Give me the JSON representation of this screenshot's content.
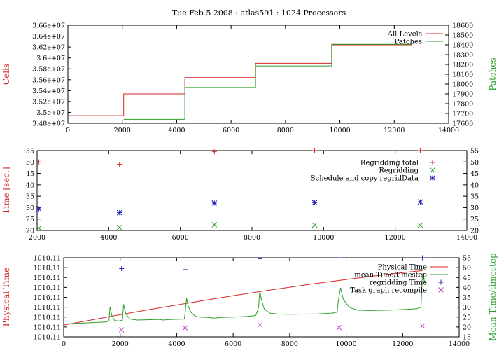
{
  "figure_title": "Tue Feb 5 2008 : atlas591 : 1024 Processors",
  "chart_data": [
    {
      "type": "line",
      "xlabel": "",
      "ylabel": "Cells",
      "y2label": "Patches",
      "xlim": [
        0,
        14000
      ],
      "ylim": [
        34800000,
        36600000
      ],
      "y2lim": [
        17600,
        18600
      ],
      "xticks": [
        "0",
        "2000",
        "4000",
        "6000",
        "8000",
        "10000",
        "12000",
        "14000"
      ],
      "yticks": [
        "3.48e+07",
        "3.5e+07",
        "3.52e+07",
        "3.54e+07",
        "3.56e+07",
        "3.58e+07",
        "3.6e+07",
        "3.62e+07",
        "3.64e+07",
        "3.66e+07"
      ],
      "y2ticks": [
        "17600",
        "17700",
        "17800",
        "17900",
        "18000",
        "18100",
        "18200",
        "18300",
        "18400",
        "18500",
        "18600"
      ],
      "legend": "top-right",
      "series": [
        {
          "name": "All Levels",
          "color": "#d62728",
          "axis": "y",
          "step": true,
          "x": [
            0,
            2050,
            2050,
            4300,
            4300,
            6900,
            6900,
            9700,
            9700,
            12650
          ],
          "y": [
            34940000,
            34940000,
            35340000,
            35340000,
            35640000,
            35640000,
            35900000,
            35900000,
            36240000,
            36240000
          ]
        },
        {
          "name": "Patches",
          "color": "#2ca02c",
          "axis": "y2",
          "step": true,
          "x": [
            2050,
            4300,
            4300,
            6900,
            6900,
            9700,
            9700,
            12650
          ],
          "y": [
            17640,
            17640,
            17965,
            17965,
            18185,
            18185,
            18405,
            18405
          ]
        }
      ]
    },
    {
      "type": "scatter",
      "xlabel": "",
      "ylabel": "Time [sec.]",
      "xlim": [
        2000,
        14000
      ],
      "ylim": [
        20,
        55
      ],
      "xticks": [
        "2000",
        "4000",
        "6000",
        "8000",
        "10000",
        "12000",
        "14000"
      ],
      "yticks": [
        "20",
        "25",
        "30",
        "35",
        "40",
        "45",
        "50",
        "55"
      ],
      "legend": "top-right",
      "series": [
        {
          "name": "Regridding total",
          "color": "#d62728",
          "marker": "+",
          "x": [
            2050,
            4300,
            6950,
            9750,
            12700
          ],
          "y": [
            50,
            49,
            54.5,
            55,
            55
          ]
        },
        {
          "name": "Regridding",
          "color": "#2ca02c",
          "marker": "x",
          "x": [
            2050,
            4300,
            6950,
            9750,
            12700
          ],
          "y": [
            21,
            21.3,
            22.5,
            22.3,
            22.3
          ]
        },
        {
          "name": "Schedule and copy regridData",
          "color": "#1f1fb4",
          "marker": "*",
          "x": [
            2050,
            4300,
            6950,
            9750,
            12700
          ],
          "y": [
            29.5,
            27.8,
            32,
            32.2,
            32.5
          ]
        }
      ]
    },
    {
      "type": "line",
      "xlabel": "",
      "ylabel": "Physical Time",
      "y2label": "Mean Time/timestep",
      "xlim": [
        0,
        14000
      ],
      "y2lim": [
        15,
        55
      ],
      "xticks": [
        "0",
        "2000",
        "4000",
        "6000",
        "8000",
        "10000",
        "12000",
        "14000"
      ],
      "yticks": [
        "1010.11",
        "1010.11",
        "1010.11",
        "1010.11",
        "1010.11",
        "1010.11",
        "1010.11",
        "1010.11",
        "1010.11"
      ],
      "y2ticks": [
        "15",
        "20",
        "25",
        "30",
        "35",
        "40",
        "45",
        "50",
        "55"
      ],
      "legend": "top-right",
      "series": [
        {
          "name": "Physical Time",
          "color": "#d62728",
          "axis": "y2",
          "x": [
            0,
            1000,
            2000,
            3000,
            4000,
            5000,
            6000,
            7000,
            8000,
            9000,
            10000,
            11000,
            12000,
            12700
          ],
          "y": [
            21,
            23.6,
            26.2,
            28.7,
            31.1,
            33.5,
            35.8,
            38,
            40.1,
            42.1,
            44,
            45.8,
            47.5,
            48.5
          ]
        },
        {
          "name": "mean Time/timestep",
          "color": "#2ca02c",
          "axis": "y2",
          "x": [
            0,
            1500,
            1600,
            1640,
            1700,
            1800,
            1950,
            2080,
            2120,
            2200,
            2350,
            2600,
            3400,
            3500,
            3800,
            4270,
            4300,
            4350,
            4400,
            4500,
            4650,
            4800,
            5100,
            5300,
            5600,
            6000,
            6500,
            6800,
            6900,
            6940,
            7000,
            7100,
            7300,
            7600,
            8000,
            8500,
            9000,
            9500,
            9680,
            9720,
            9800,
            9900,
            10100,
            10400,
            10800,
            11500,
            12000,
            12500,
            12650,
            12700,
            12750,
            12800
          ],
          "y": [
            21.5,
            22.5,
            23,
            30.2,
            26,
            23.3,
            23,
            23.5,
            31.5,
            26.5,
            24,
            23.5,
            23.8,
            23.5,
            23.8,
            24,
            27,
            34.5,
            31,
            27.5,
            25.5,
            25,
            24.8,
            24.5,
            24.8,
            25,
            25.3,
            25.8,
            30,
            38.2,
            34,
            29,
            27,
            26.5,
            26.4,
            26.5,
            26.6,
            27,
            27.5,
            33,
            39.8,
            34,
            30,
            28.5,
            28.3,
            28.5,
            28.8,
            29.2,
            30,
            46.8,
            44,
            42
          ]
        },
        {
          "name": "regridding Time",
          "color": "#1f1fb4",
          "axis": "y2",
          "marker": "+",
          "x": [
            2050,
            4300,
            6950,
            9750,
            12700
          ],
          "y": [
            49.5,
            49,
            54.5,
            55,
            55
          ]
        },
        {
          "name": "Task graph recompile",
          "color": "#c050c0",
          "axis": "y2",
          "marker": "x",
          "x": [
            2050,
            4300,
            6950,
            9750,
            12700
          ],
          "y": [
            18.5,
            19.5,
            21,
            19.7,
            20.5
          ]
        }
      ]
    }
  ]
}
